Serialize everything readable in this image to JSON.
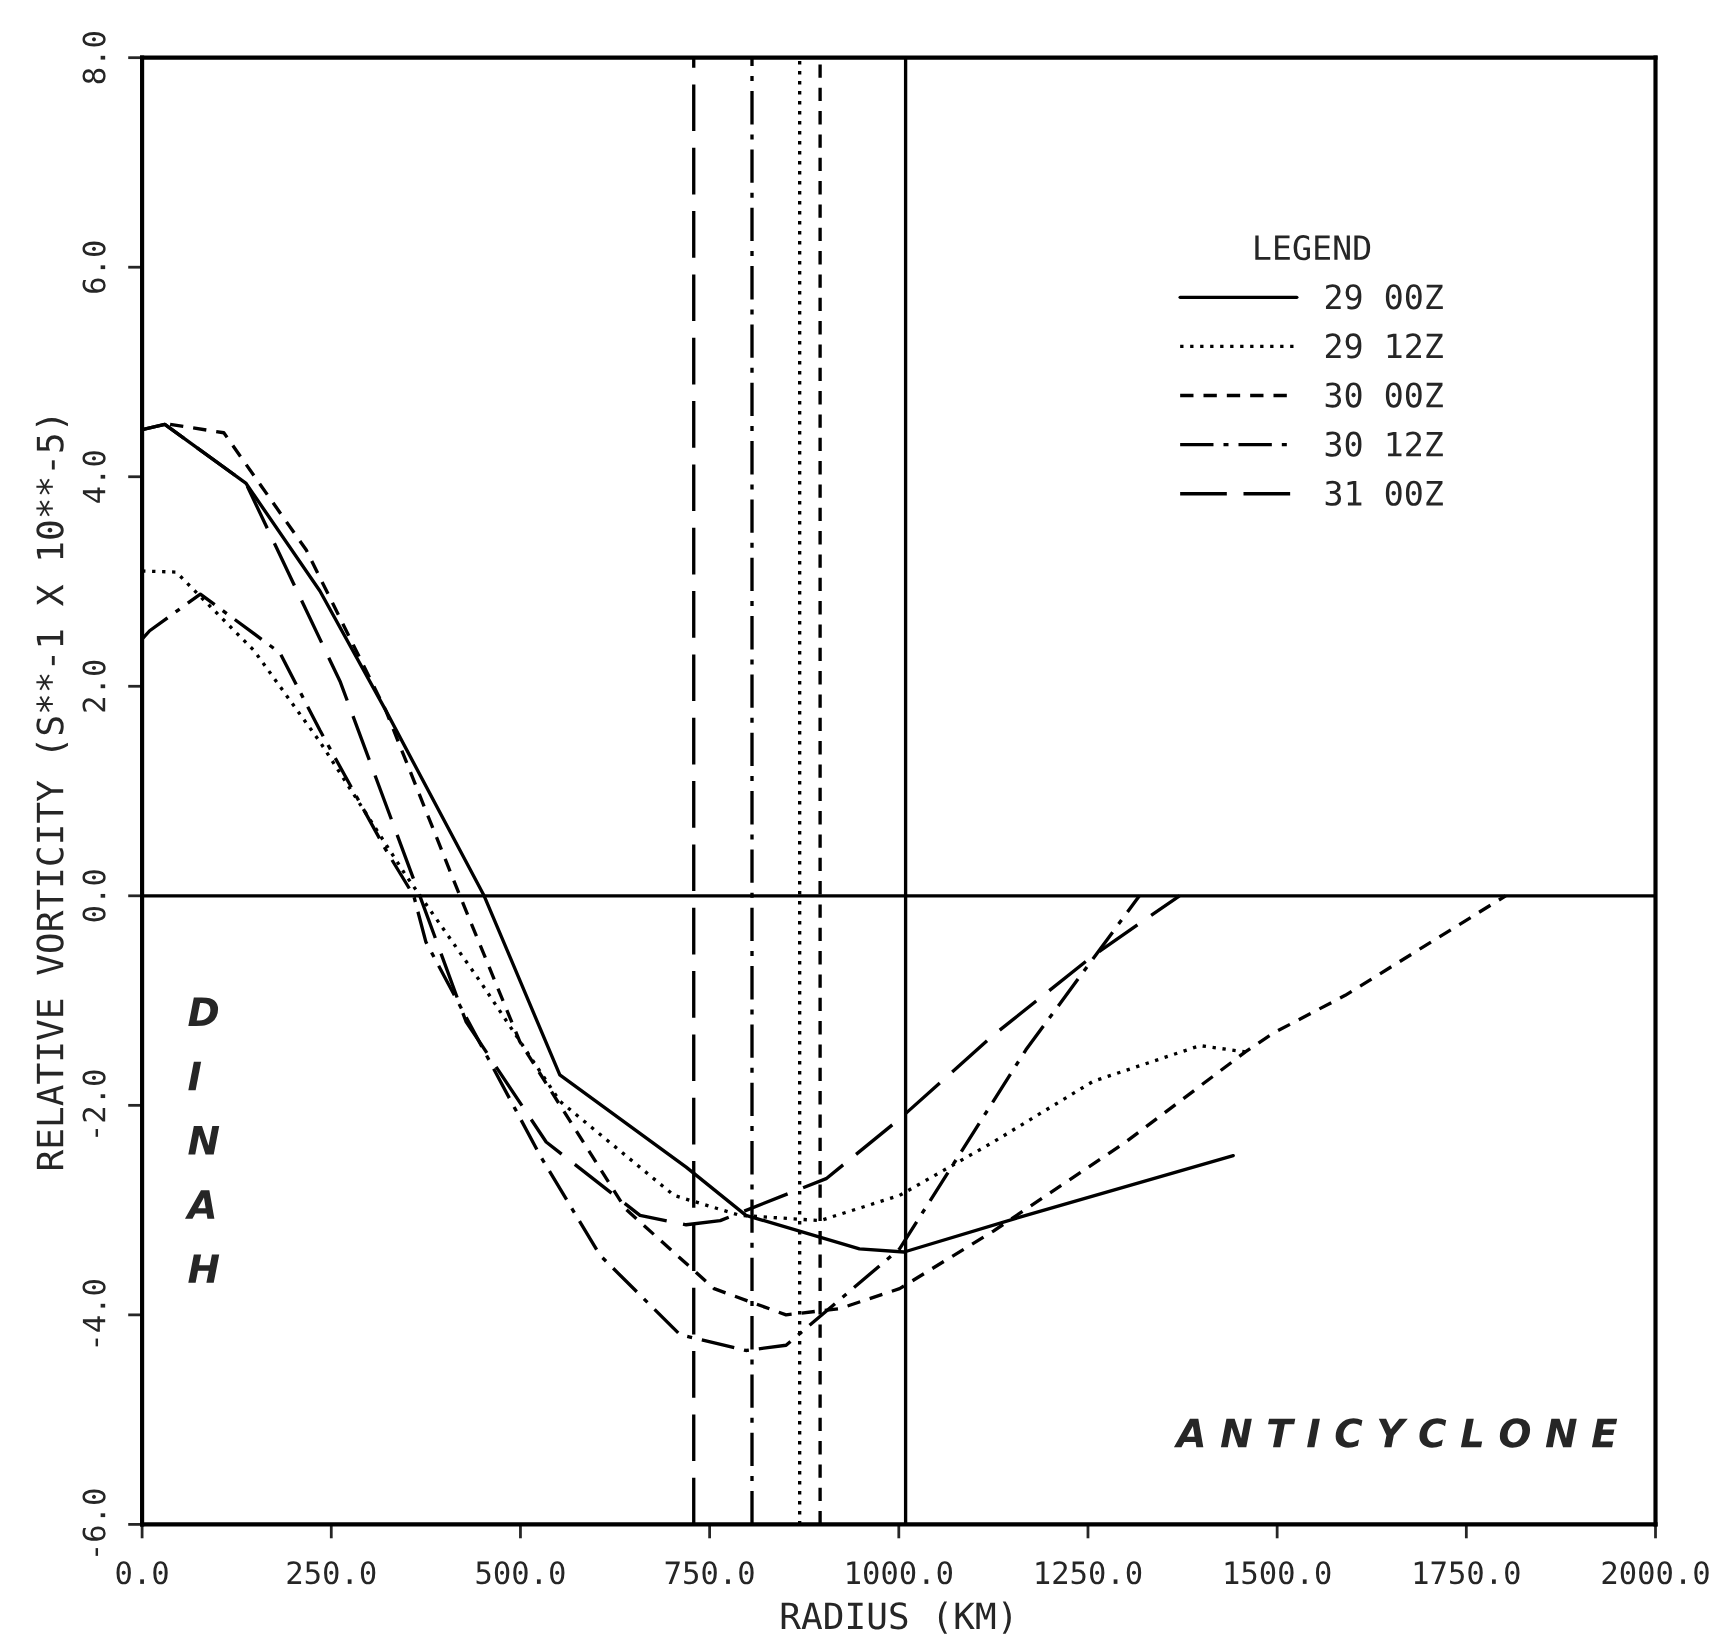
{
  "chart_data": {
    "type": "line",
    "xlabel": "RADIUS (KM)",
    "ylabel": "RELATIVE VORTICITY (S**-1 X 10**-5)",
    "legend_title": "LEGEND",
    "xlim": [
      0,
      2000
    ],
    "ylim": [
      -6,
      8
    ],
    "xticks": [
      {
        "value": 0,
        "label": "0.0"
      },
      {
        "value": 250,
        "label": "250.0"
      },
      {
        "value": 500,
        "label": "500.0"
      },
      {
        "value": 750,
        "label": "750.0"
      },
      {
        "value": 1000,
        "label": "1000.0"
      },
      {
        "value": 1250,
        "label": "1250.0"
      },
      {
        "value": 1500,
        "label": "1500.0"
      },
      {
        "value": 1750,
        "label": "1750.0"
      },
      {
        "value": 2000,
        "label": "2000.0"
      }
    ],
    "yticks": [
      {
        "value": -6,
        "label": "-6.0"
      },
      {
        "value": -4,
        "label": "-4.0"
      },
      {
        "value": -2,
        "label": "-2.0"
      },
      {
        "value": 0,
        "label": "0.0"
      },
      {
        "value": 2,
        "label": "2.0"
      },
      {
        "value": 4,
        "label": "4.0"
      },
      {
        "value": 6,
        "label": "6.0"
      },
      {
        "value": 8,
        "label": "8.0"
      }
    ],
    "grid": false,
    "legend": "top right",
    "marker": "none",
    "series": [
      {
        "name": "29 00Z",
        "color": "#000000",
        "line_style": "solid",
        "x": [
          0,
          30,
          137,
          235,
          322,
          452,
          552,
          719,
          798,
          948,
          1007,
          1168,
          1442
        ],
        "values": [
          4.45,
          4.5,
          3.94,
          2.91,
          1.77,
          0,
          -1.71,
          -2.59,
          -3.05,
          -3.37,
          -3.4,
          -3.05,
          -2.48
        ]
      },
      {
        "name": "29 12Z",
        "color": "#000000",
        "line_style": "dotted",
        "x": [
          0,
          45,
          148,
          235,
          349,
          447,
          552,
          703,
          790,
          896,
          1001,
          1125,
          1257,
          1398,
          1458
        ],
        "values": [
          3.1,
          3.09,
          2.34,
          1.47,
          0.19,
          -0.82,
          -1.96,
          -2.86,
          -3.05,
          -3.1,
          -2.86,
          -2.35,
          -1.77,
          -1.43,
          -1.49
        ]
      },
      {
        "name": "30 00Z",
        "color": "#000000",
        "line_style": "dashed",
        "x": [
          37,
          108,
          217,
          322,
          420,
          499,
          639,
          756,
          851,
          922,
          1001,
          1125,
          1300,
          1458,
          1495,
          1590,
          1802
        ],
        "values": [
          4.5,
          4.42,
          3.3,
          1.77,
          0,
          -1.39,
          -2.99,
          -3.75,
          -4.0,
          -3.94,
          -3.75,
          -3.2,
          -2.35,
          -1.49,
          -1.31,
          -0.95,
          0
        ]
      },
      {
        "name": "30 12Z",
        "color": "#000000",
        "line_style": "dashdot",
        "x": [
          0,
          10,
          77,
          182,
          235,
          322,
          359,
          375,
          526,
          605,
          711,
          798,
          851,
          1001,
          1168,
          1318
        ],
        "values": [
          2.45,
          2.53,
          2.88,
          2.32,
          1.58,
          0.44,
          0,
          -0.44,
          -2.48,
          -3.43,
          -4.19,
          -4.34,
          -4.29,
          -3.37,
          -1.47,
          0
        ]
      },
      {
        "name": "31 00Z",
        "color": "#000000",
        "line_style": "longdash",
        "x": [
          0,
          30,
          137,
          262,
          367,
          428,
          534,
          658,
          719,
          764,
          904,
          1001,
          1125,
          1257,
          1371
        ],
        "values": [
          4.45,
          4.5,
          3.94,
          2.04,
          0,
          -1.2,
          -2.35,
          -3.05,
          -3.14,
          -3.1,
          -2.7,
          -2.13,
          -1.33,
          -0.57,
          0
        ]
      }
    ],
    "ref_lines": [
      {
        "axis": "y",
        "value": 0,
        "color": "#000000",
        "line_style": "solid"
      },
      {
        "axis": "x",
        "value": 1009,
        "color": "#000000",
        "line_style": "solid"
      },
      {
        "axis": "x",
        "value": 869,
        "color": "#000000",
        "line_style": "dotted"
      },
      {
        "axis": "x",
        "value": 896,
        "color": "#000000",
        "line_style": "dashed"
      },
      {
        "axis": "x",
        "value": 806,
        "color": "#000000",
        "line_style": "dashdot"
      },
      {
        "axis": "x",
        "value": 729,
        "color": "#000000",
        "line_style": "longdash"
      }
    ],
    "annotations": [
      "DINAH",
      "A N T I C Y C L O N E"
    ]
  }
}
